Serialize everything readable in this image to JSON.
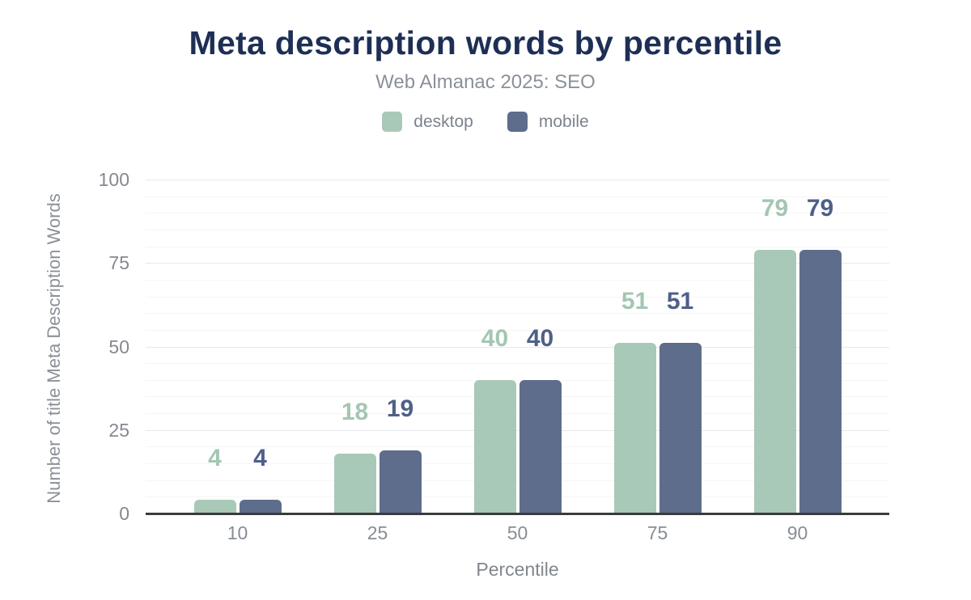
{
  "chart_data": {
    "type": "bar",
    "title": "Meta description words by percentile",
    "subtitle": "Web Almanac 2025: SEO",
    "categories": [
      "10",
      "25",
      "50",
      "75",
      "90"
    ],
    "series": [
      {
        "name": "desktop",
        "color": "#a8c9b8",
        "label_color": "#a4c6b2",
        "values": [
          4,
          18,
          40,
          51,
          79
        ]
      },
      {
        "name": "mobile",
        "color": "#5e6d8b",
        "label_color": "#4e6089",
        "values": [
          4,
          19,
          40,
          51,
          79
        ]
      }
    ],
    "xlabel": "Percentile",
    "ylabel": "Number of title Meta Description Words",
    "ylim": [
      0,
      100
    ],
    "yticks": [
      0,
      25,
      50,
      75,
      100
    ],
    "minor_grid_step": 5,
    "grid": true,
    "legend_position": "top",
    "colors": {
      "title": "#1e2f55",
      "subtitle": "#8b909a",
      "axis_line": "#3a3b3d",
      "major_grid": "#e7e8ea",
      "minor_grid": "#f4f5f6",
      "tick_label": "#85888f"
    }
  }
}
